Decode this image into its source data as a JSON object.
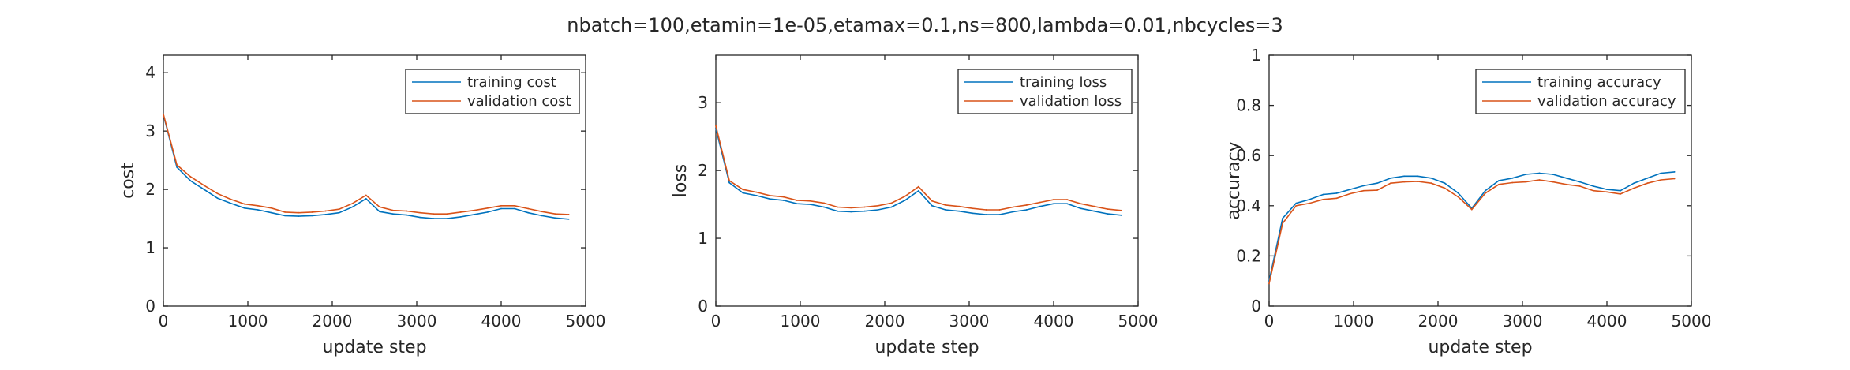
{
  "figure": {
    "title": "nbatch=100,etamin=1e-05,etamax=0.1,ns=800,lambda=0.01,nbcycles=3",
    "colors": {
      "axis": "#262626",
      "training": "#0072BD",
      "validation": "#D95319",
      "background": "#ffffff"
    }
  },
  "chart_data": [
    {
      "type": "line",
      "title": "",
      "xlabel": "update step",
      "ylabel": "cost",
      "xlim": [
        0,
        5000
      ],
      "ylim": [
        0,
        4.3
      ],
      "xticks": [
        0,
        1000,
        2000,
        3000,
        4000,
        5000
      ],
      "yticks": [
        0,
        1,
        2,
        3,
        4
      ],
      "grid": false,
      "legend_position": "top-right",
      "x": [
        0,
        160,
        320,
        480,
        640,
        800,
        960,
        1120,
        1280,
        1440,
        1600,
        1760,
        1920,
        2080,
        2240,
        2400,
        2560,
        2720,
        2880,
        3040,
        3200,
        3360,
        3520,
        3680,
        3840,
        4000,
        4160,
        4320,
        4480,
        4640,
        4800
      ],
      "series": [
        {
          "name": "training cost",
          "color": "#0072BD",
          "values": [
            3.28,
            2.38,
            2.15,
            2.0,
            1.85,
            1.76,
            1.68,
            1.65,
            1.6,
            1.55,
            1.54,
            1.55,
            1.57,
            1.6,
            1.7,
            1.84,
            1.62,
            1.58,
            1.56,
            1.52,
            1.5,
            1.5,
            1.53,
            1.57,
            1.61,
            1.67,
            1.67,
            1.6,
            1.55,
            1.51,
            1.49
          ]
        },
        {
          "name": "validation cost",
          "color": "#D95319",
          "values": [
            3.29,
            2.42,
            2.22,
            2.07,
            1.93,
            1.83,
            1.75,
            1.72,
            1.68,
            1.61,
            1.6,
            1.61,
            1.63,
            1.66,
            1.76,
            1.9,
            1.7,
            1.64,
            1.63,
            1.6,
            1.58,
            1.58,
            1.61,
            1.64,
            1.68,
            1.72,
            1.72,
            1.67,
            1.62,
            1.58,
            1.57
          ]
        }
      ]
    },
    {
      "type": "line",
      "title": "",
      "xlabel": "update step",
      "ylabel": "loss",
      "xlim": [
        0,
        5000
      ],
      "ylim": [
        0,
        3.7
      ],
      "xticks": [
        0,
        1000,
        2000,
        3000,
        4000,
        5000
      ],
      "yticks": [
        0,
        1,
        2,
        3
      ],
      "grid": false,
      "legend_position": "top-right",
      "x": [
        0,
        160,
        320,
        480,
        640,
        800,
        960,
        1120,
        1280,
        1440,
        1600,
        1760,
        1920,
        2080,
        2240,
        2400,
        2560,
        2720,
        2880,
        3040,
        3200,
        3360,
        3520,
        3680,
        3840,
        4000,
        4160,
        4320,
        4480,
        4640,
        4800
      ],
      "series": [
        {
          "name": "training loss",
          "color": "#0072BD",
          "values": [
            2.62,
            1.82,
            1.67,
            1.63,
            1.58,
            1.56,
            1.51,
            1.5,
            1.46,
            1.4,
            1.39,
            1.4,
            1.42,
            1.46,
            1.56,
            1.7,
            1.48,
            1.42,
            1.4,
            1.37,
            1.35,
            1.35,
            1.39,
            1.42,
            1.47,
            1.51,
            1.51,
            1.44,
            1.4,
            1.36,
            1.34
          ]
        },
        {
          "name": "validation loss",
          "color": "#D95319",
          "values": [
            2.66,
            1.85,
            1.72,
            1.68,
            1.63,
            1.61,
            1.56,
            1.55,
            1.52,
            1.46,
            1.45,
            1.46,
            1.48,
            1.52,
            1.62,
            1.76,
            1.55,
            1.49,
            1.47,
            1.44,
            1.42,
            1.42,
            1.46,
            1.49,
            1.53,
            1.57,
            1.57,
            1.51,
            1.47,
            1.43,
            1.41
          ]
        }
      ]
    },
    {
      "type": "line",
      "title": "",
      "xlabel": "update step",
      "ylabel": "accuracy",
      "xlim": [
        0,
        5000
      ],
      "ylim": [
        0,
        1
      ],
      "xticks": [
        0,
        1000,
        2000,
        3000,
        4000,
        5000
      ],
      "yticks": [
        0,
        0.2,
        0.4,
        0.6,
        0.8,
        1
      ],
      "grid": false,
      "legend_position": "top-right",
      "x": [
        0,
        160,
        320,
        480,
        640,
        800,
        960,
        1120,
        1280,
        1440,
        1600,
        1760,
        1920,
        2080,
        2240,
        2400,
        2560,
        2720,
        2880,
        3040,
        3200,
        3360,
        3520,
        3680,
        3840,
        4000,
        4160,
        4320,
        4480,
        4640,
        4800
      ],
      "series": [
        {
          "name": "training accuracy",
          "color": "#0072BD",
          "values": [
            0.1,
            0.35,
            0.41,
            0.425,
            0.445,
            0.45,
            0.465,
            0.48,
            0.49,
            0.51,
            0.518,
            0.518,
            0.51,
            0.49,
            0.45,
            0.39,
            0.46,
            0.5,
            0.51,
            0.525,
            0.53,
            0.525,
            0.51,
            0.495,
            0.478,
            0.465,
            0.46,
            0.49,
            0.51,
            0.53,
            0.535
          ]
        },
        {
          "name": "validation accuracy",
          "color": "#D95319",
          "values": [
            0.09,
            0.33,
            0.4,
            0.41,
            0.425,
            0.43,
            0.448,
            0.46,
            0.462,
            0.49,
            0.495,
            0.497,
            0.49,
            0.47,
            0.435,
            0.385,
            0.45,
            0.485,
            0.492,
            0.495,
            0.503,
            0.495,
            0.485,
            0.478,
            0.46,
            0.455,
            0.447,
            0.47,
            0.49,
            0.503,
            0.508
          ]
        }
      ]
    }
  ]
}
